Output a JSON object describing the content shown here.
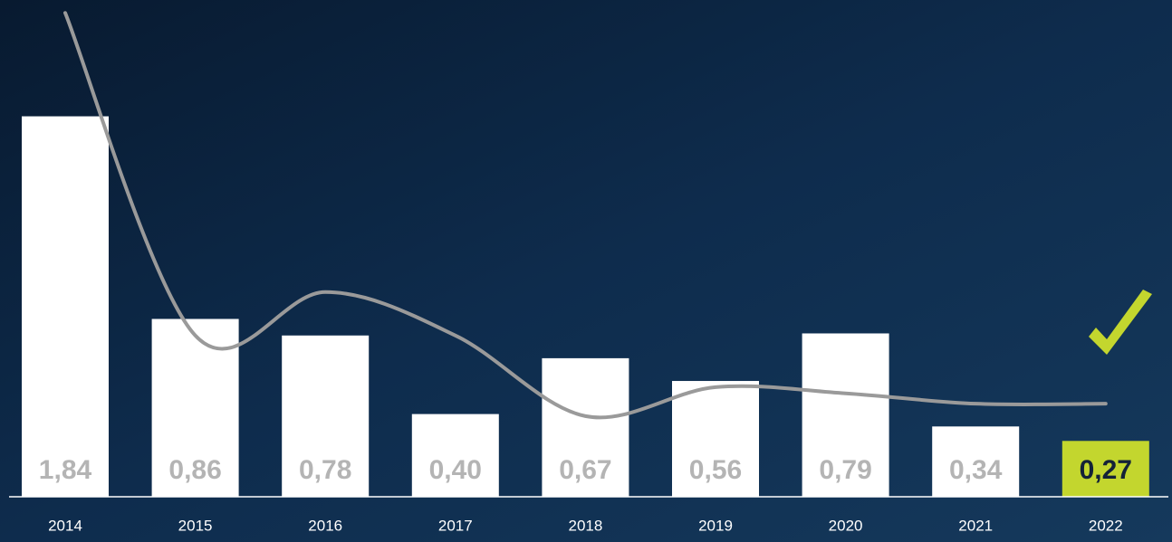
{
  "chart_data": {
    "type": "bar",
    "categories": [
      "2014",
      "2015",
      "2016",
      "2017",
      "2018",
      "2019",
      "2020",
      "2021",
      "2022"
    ],
    "values": [
      1.84,
      0.86,
      0.78,
      0.4,
      0.67,
      0.56,
      0.79,
      0.34,
      0.27
    ],
    "value_labels": [
      "1,84",
      "0,86",
      "0,78",
      "0,40",
      "0,67",
      "0,56",
      "0,79",
      "0,34",
      "0,27"
    ],
    "colors": [
      "#ffffff",
      "#ffffff",
      "#ffffff",
      "#ffffff",
      "#ffffff",
      "#ffffff",
      "#ffffff",
      "#ffffff",
      "#c3d62e"
    ],
    "label_colors": [
      "#b4b4b4",
      "#b4b4b4",
      "#b4b4b4",
      "#b4b4b4",
      "#b4b4b4",
      "#b4b4b4",
      "#b4b4b4",
      "#b4b4b4",
      "#142238"
    ],
    "trend_values": [
      2.34,
      0.78,
      0.99,
      0.78,
      0.39,
      0.53,
      0.5,
      0.45,
      0.45
    ],
    "trend_color": "#9a9a9a",
    "ylim": [
      0,
      2.35
    ]
  }
}
